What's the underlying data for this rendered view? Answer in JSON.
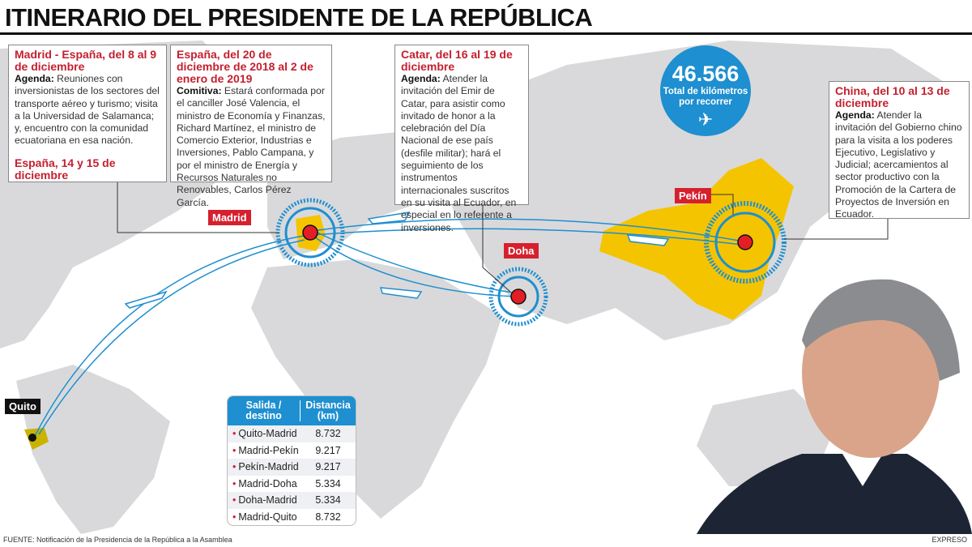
{
  "title": "ITINERARIO DEL PRESIDENTE DE LA REPÚBLICA",
  "boxes": {
    "madrid": {
      "heading": "Madrid - España, del 8 al 9 de diciembre",
      "label": "Agenda:",
      "text": "Reuniones con inversionistas de los sectores del transporte aéreo y turismo; visita a la Universidad de Salamanca; y, encuentro con la comunidad ecuatoriana en esa nación.",
      "heading2": "España, 14 y 15 de diciembre"
    },
    "comitiva": {
      "heading": "España, del 20 de diciembre de 2018 al 2 de enero de 2019",
      "label": "Comitiva:",
      "text": "Estará conformada por el canciller José Valencia, el ministro de Economía y Finanzas, Richard Martínez, el ministro de Comercio Exterior, Industrias e Inversiones, Pablo Campana, y por el ministro de Energía y Recursos Naturales no Renovables, Carlos Pérez García."
    },
    "catar": {
      "heading": "Catar, del 16 al 19 de diciembre",
      "label": "Agenda:",
      "text": "Atender la invitación del Emir de Catar, para asistir como invitado de honor a la celebración del Día Nacional de ese país (desfile militar); hará el seguimiento de los instrumentos internacionales suscritos en su visita al Ecuador, en especial en lo referente a inversiones."
    },
    "china": {
      "heading": "China, del 10 al 13 de diciembre",
      "label": "Agenda:",
      "text": "Atender la invitación del Gobierno chino para la visita a los poderes Ejecutivo, Legislativo y Judicial; acercamientos al sector productivo con la Promoción de la Cartera de Proyectos de Inversión en Ecuador."
    }
  },
  "total": {
    "value": "46.566",
    "text": "Total de kilómetros por recorrer",
    "icon": "airplane-icon"
  },
  "cities": {
    "madrid": "Madrid",
    "doha": "Doha",
    "pekin": "Pekín",
    "quito": "Quito"
  },
  "table": {
    "headers": [
      "Salida / destino",
      "Distancia (km)"
    ],
    "rows": [
      [
        "Quito-Madrid",
        "8.732"
      ],
      [
        "Madrid-Pekín",
        "9.217"
      ],
      [
        "Pekín-Madrid",
        "9.217"
      ],
      [
        "Madrid-Doha",
        "5.334"
      ],
      [
        "Doha-Madrid",
        "5.334"
      ],
      [
        "Madrid-Quito",
        "8.732"
      ]
    ]
  },
  "footer": {
    "source": "FUENTE: Notificación de la Presidencia de la República a la Asamblea",
    "brand": "EXPRESO"
  },
  "colors": {
    "accent_red": "#d6202e",
    "blue": "#1e8fd0",
    "china_yellow": "#f5c400",
    "land": "#d9d9db"
  }
}
